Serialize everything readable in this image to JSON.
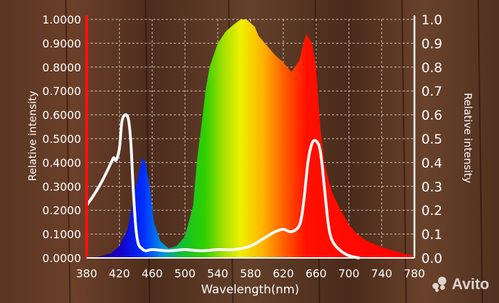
{
  "chart_data": {
    "type": "area",
    "xlabel": "Wavelength(nm)",
    "ylabel_left": "Relative intensity",
    "ylabel_right": "Relative intensity",
    "x_ticks": [
      "380",
      "420",
      "460",
      "500",
      "540",
      "580",
      "620",
      "660",
      "700",
      "740",
      "780"
    ],
    "y_ticks_left": [
      "0.0000",
      "0.1000",
      "0.2000",
      "0.3000",
      "0.4000",
      "0.5000",
      "0.6000",
      "0.7000",
      "0.8000",
      "0.9000",
      "1.0000"
    ],
    "y_ticks_right": [
      "0.0",
      "0.1",
      "0.2",
      "0.3",
      "0.4",
      "0.5",
      "0.6",
      "0.7",
      "0.8",
      "0.9",
      "1.0"
    ],
    "xlim": [
      380,
      780
    ],
    "ylim": [
      0,
      1
    ],
    "grid": true,
    "series": [
      {
        "style": "filled spectrum-colored area",
        "x": [
          380,
          395,
          410,
          420,
          430,
          440,
          448,
          452,
          458,
          462,
          470,
          480,
          490,
          500,
          510,
          515,
          520,
          525,
          530,
          540,
          550,
          560,
          568,
          575,
          585,
          590,
          600,
          610,
          620,
          630,
          640,
          643,
          648,
          655,
          660,
          665,
          670,
          675,
          680,
          690,
          700,
          710,
          720,
          730,
          740,
          750,
          760,
          770,
          780
        ],
        "y": [
          0,
          0.005,
          0.02,
          0.05,
          0.12,
          0.3,
          0.42,
          0.4,
          0.28,
          0.15,
          0.07,
          0.04,
          0.05,
          0.09,
          0.22,
          0.42,
          0.55,
          0.7,
          0.8,
          0.9,
          0.95,
          0.98,
          1.0,
          1.0,
          0.97,
          0.93,
          0.89,
          0.85,
          0.82,
          0.78,
          0.83,
          0.88,
          0.94,
          0.9,
          0.8,
          0.55,
          0.4,
          0.33,
          0.27,
          0.2,
          0.14,
          0.1,
          0.075,
          0.06,
          0.045,
          0.035,
          0.025,
          0.015,
          0.01
        ]
      },
      {
        "style": "white line",
        "color": "#ffffff",
        "x": [
          380,
          390,
          400,
          410,
          413,
          416,
          420,
          423,
          427,
          431,
          434,
          437,
          440,
          443,
          447,
          452,
          460,
          480,
          500,
          520,
          540,
          560,
          580,
          600,
          610,
          620,
          630,
          640,
          645,
          650,
          655,
          660,
          665,
          670,
          675,
          680,
          690,
          700,
          712
        ],
        "y": [
          0.22,
          0.27,
          0.33,
          0.4,
          0.42,
          0.41,
          0.46,
          0.57,
          0.6,
          0.58,
          0.48,
          0.28,
          0.13,
          0.06,
          0.04,
          0.03,
          0.035,
          0.03,
          0.035,
          0.03,
          0.035,
          0.035,
          0.05,
          0.09,
          0.11,
          0.12,
          0.11,
          0.14,
          0.24,
          0.4,
          0.48,
          0.49,
          0.45,
          0.3,
          0.14,
          0.07,
          0.03,
          0.01,
          0.0
        ]
      }
    ]
  },
  "watermark": "Avito"
}
